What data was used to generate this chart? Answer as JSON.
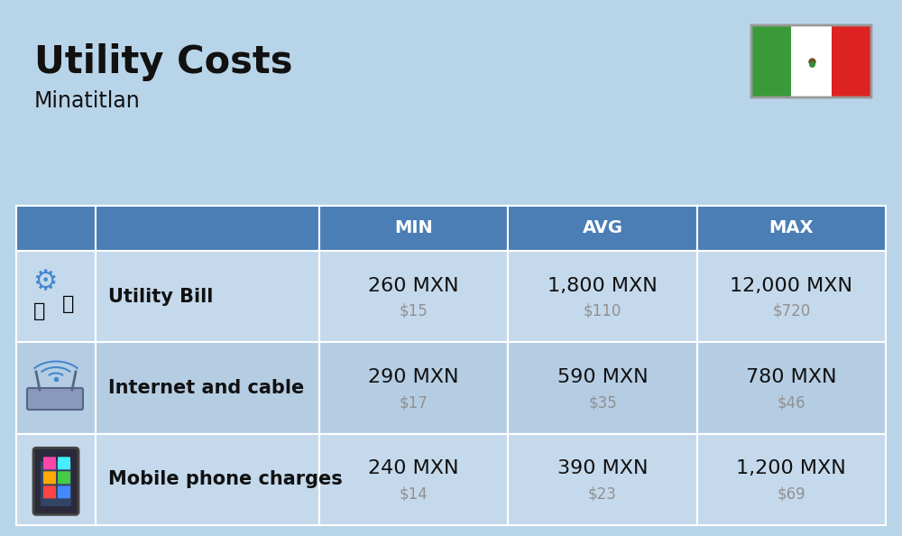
{
  "title": "Utility Costs",
  "subtitle": "Minatitlan",
  "background_color": "#b8d4e8",
  "header_bg_color": "#4a7eb5",
  "header_text_color": "#ffffff",
  "row_bg_color_1": "#c5d9ec",
  "row_bg_color_2": "#b5cde3",
  "table_border_color": "#ffffff",
  "rows": [
    {
      "label": "Utility Bill",
      "icon": "utility",
      "min_mxn": "260 MXN",
      "min_usd": "$15",
      "avg_mxn": "1,800 MXN",
      "avg_usd": "$110",
      "max_mxn": "12,000 MXN",
      "max_usd": "$720"
    },
    {
      "label": "Internet and cable",
      "icon": "internet",
      "min_mxn": "290 MXN",
      "min_usd": "$17",
      "avg_mxn": "590 MXN",
      "avg_usd": "$35",
      "max_mxn": "780 MXN",
      "max_usd": "$46"
    },
    {
      "label": "Mobile phone charges",
      "icon": "mobile",
      "min_mxn": "240 MXN",
      "min_usd": "$14",
      "avg_mxn": "390 MXN",
      "avg_usd": "$23",
      "max_mxn": "1,200 MXN",
      "max_usd": "$69"
    }
  ],
  "col_headers": [
    "MIN",
    "AVG",
    "MAX"
  ],
  "title_fontsize": 30,
  "subtitle_fontsize": 17,
  "header_fontsize": 14,
  "cell_mxn_fontsize": 16,
  "cell_usd_fontsize": 12,
  "label_fontsize": 15,
  "usd_color": "#909090",
  "text_color": "#111111",
  "flag_green": "#3a9a3a",
  "flag_white": "#ffffff",
  "flag_red": "#dd2222"
}
